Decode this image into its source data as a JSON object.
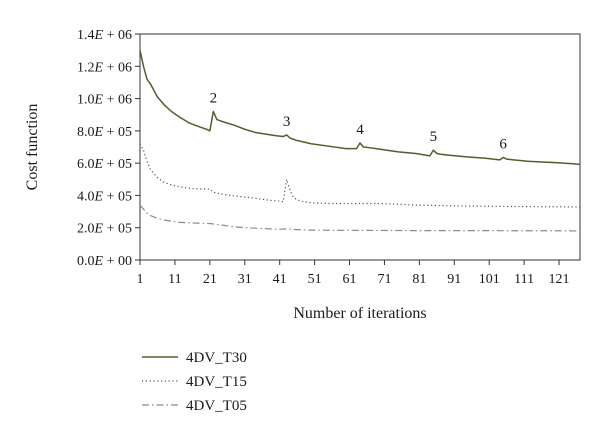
{
  "chart_data": {
    "type": "line",
    "title": "",
    "xlabel": "Number of iterations",
    "ylabel": "Cost function",
    "xlim": [
      1,
      127
    ],
    "ylim": [
      0,
      1400000
    ],
    "x_ticks": [
      1,
      11,
      21,
      31,
      41,
      51,
      61,
      71,
      81,
      91,
      101,
      111,
      121
    ],
    "x_tick_labels": [
      "1",
      "11",
      "21",
      "31",
      "41",
      "51",
      "61",
      "71",
      "81",
      "91",
      "101",
      "111",
      "121"
    ],
    "y_ticks": [
      0,
      200000,
      400000,
      600000,
      800000,
      1000000,
      1200000,
      1400000
    ],
    "y_tick_labels": [
      {
        "mantissa": "0.0",
        "suffix": "00"
      },
      {
        "mantissa": "2.0",
        "suffix": "05"
      },
      {
        "mantissa": "4.0",
        "suffix": "05"
      },
      {
        "mantissa": "6.0",
        "suffix": "05"
      },
      {
        "mantissa": "8.0",
        "suffix": "05"
      },
      {
        "mantissa": "1.0",
        "suffix": "06"
      },
      {
        "mantissa": "1.2",
        "suffix": "06"
      },
      {
        "mantissa": "1.4",
        "suffix": "06"
      }
    ],
    "y_tick_exponent_text": "E",
    "y_tick_plus_text": " + ",
    "grid": false,
    "legend_position": "below",
    "series": [
      {
        "name": "4DV_T30",
        "color": "#5a5a2e",
        "style": "solid",
        "x": [
          1,
          2,
          3,
          4,
          6,
          8,
          10,
          12,
          15,
          18,
          20,
          21,
          22,
          23,
          25,
          28,
          31,
          34,
          37,
          40,
          42,
          43,
          44,
          46,
          50,
          55,
          60,
          63,
          64,
          65,
          67,
          70,
          75,
          80,
          84,
          85,
          86,
          87,
          90,
          95,
          100,
          104,
          105,
          106,
          108,
          112,
          116,
          120,
          124,
          127
        ],
        "y": [
          1300000,
          1200000,
          1120000,
          1090000,
          1010000,
          960000,
          920000,
          890000,
          850000,
          825000,
          810000,
          800000,
          920000,
          870000,
          855000,
          835000,
          810000,
          790000,
          780000,
          770000,
          765000,
          775000,
          755000,
          740000,
          720000,
          705000,
          690000,
          690000,
          725000,
          700000,
          695000,
          685000,
          670000,
          660000,
          645000,
          680000,
          660000,
          655000,
          648000,
          638000,
          630000,
          620000,
          635000,
          625000,
          620000,
          612000,
          607000,
          603000,
          598000,
          592000
        ]
      },
      {
        "name": "4DV_T15",
        "color": "#555555",
        "style": "dotted",
        "x": [
          1,
          2,
          3,
          4,
          6,
          8,
          10,
          12,
          15,
          18,
          21,
          22,
          24,
          27,
          31,
          35,
          38,
          41,
          42,
          43,
          44,
          45,
          47,
          50,
          55,
          60,
          65,
          70,
          75,
          80,
          85,
          90,
          95,
          100,
          105,
          110,
          115,
          120,
          125,
          127
        ],
        "y": [
          720000,
          680000,
          610000,
          560000,
          510000,
          480000,
          465000,
          455000,
          445000,
          440000,
          440000,
          420000,
          410000,
          400000,
          390000,
          380000,
          370000,
          365000,
          360000,
          500000,
          430000,
          385000,
          365000,
          355000,
          350000,
          350000,
          350000,
          350000,
          345000,
          340000,
          338000,
          336000,
          334000,
          333000,
          332000,
          331000,
          330000,
          330000,
          329000,
          328000
        ]
      },
      {
        "name": "4DV_T05",
        "color": "#8a8a8a",
        "style": "dashdot",
        "x": [
          1,
          2,
          3,
          4,
          6,
          8,
          10,
          12,
          15,
          18,
          21,
          24,
          28,
          33,
          38,
          41,
          43,
          46,
          50,
          60,
          70,
          80,
          90,
          100,
          110,
          120,
          127
        ],
        "y": [
          340000,
          315000,
          290000,
          275000,
          258000,
          248000,
          240000,
          234000,
          230000,
          228000,
          226000,
          218000,
          205000,
          198000,
          193000,
          190000,
          193000,
          188000,
          185000,
          184000,
          183000,
          182000,
          182000,
          182000,
          181000,
          181000,
          180000
        ]
      }
    ],
    "annotations": [
      {
        "text": "2",
        "x": 22,
        "y": 920000
      },
      {
        "text": "3",
        "x": 43,
        "y": 775000
      },
      {
        "text": "4",
        "x": 64,
        "y": 725000
      },
      {
        "text": "5",
        "x": 85,
        "y": 680000
      },
      {
        "text": "6",
        "x": 105,
        "y": 635000
      }
    ]
  }
}
